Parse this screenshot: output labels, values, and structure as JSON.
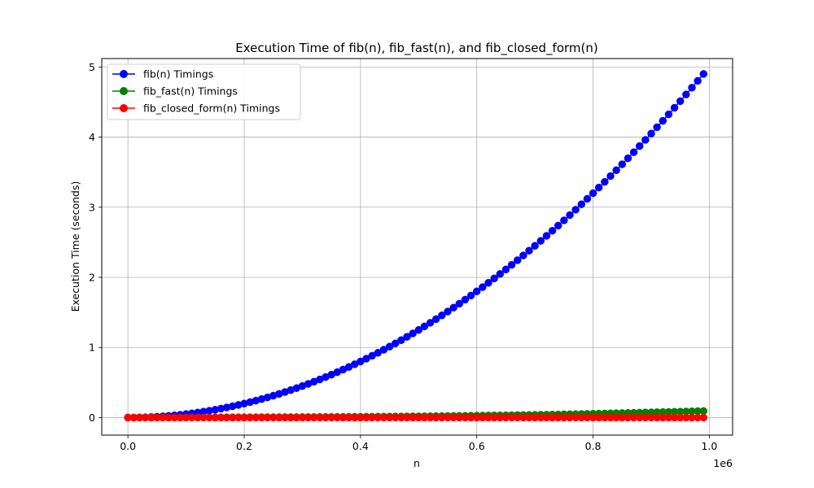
{
  "chart_data": {
    "type": "line",
    "title": "Execution Time of fib(n), fib_fast(n), and fib_closed_form(n)",
    "xlabel": "n",
    "ylabel": "Execution Time (seconds)",
    "x_offset_label": "1e6",
    "xlim": [
      -0.045,
      1.04
    ],
    "ylim": [
      -0.25,
      5.12
    ],
    "x_ticks": [
      0.0,
      0.2,
      0.4,
      0.6,
      0.8,
      1.0
    ],
    "x_tick_labels": [
      "0.0",
      "0.2",
      "0.4",
      "0.6",
      "0.8",
      "1.0"
    ],
    "y_ticks": [
      0,
      1,
      2,
      3,
      4,
      5
    ],
    "y_tick_labels": [
      "0",
      "1",
      "2",
      "3",
      "4",
      "5"
    ],
    "grid": true,
    "legend_position": "top-left",
    "x": [
      0.0,
      0.01,
      0.02,
      0.03,
      0.04,
      0.05,
      0.06,
      0.07,
      0.08,
      0.09,
      0.1,
      0.11,
      0.12,
      0.13,
      0.14,
      0.15,
      0.16,
      0.17,
      0.18,
      0.19,
      0.2,
      0.21,
      0.22,
      0.23,
      0.24,
      0.25,
      0.26,
      0.27,
      0.28,
      0.29,
      0.3,
      0.31,
      0.32,
      0.33,
      0.34,
      0.35,
      0.36,
      0.37,
      0.38,
      0.39,
      0.4,
      0.41,
      0.42,
      0.43,
      0.44,
      0.45,
      0.46,
      0.47,
      0.48,
      0.49,
      0.5,
      0.51,
      0.52,
      0.53,
      0.54,
      0.55,
      0.56,
      0.57,
      0.58,
      0.59,
      0.6,
      0.61,
      0.62,
      0.63,
      0.64,
      0.65,
      0.66,
      0.67,
      0.68,
      0.69,
      0.7,
      0.71,
      0.72,
      0.73,
      0.74,
      0.75,
      0.76,
      0.77,
      0.78,
      0.79,
      0.8,
      0.81,
      0.82,
      0.83,
      0.84,
      0.85,
      0.86,
      0.87,
      0.88,
      0.89,
      0.9,
      0.91,
      0.92,
      0.93,
      0.94,
      0.95,
      0.96,
      0.97,
      0.98,
      0.99
    ],
    "series": [
      {
        "name": "fib(n) Timings",
        "color": "#0000ff",
        "values": [
          0.0,
          0.0005,
          0.002,
          0.0045,
          0.008,
          0.0125,
          0.018,
          0.0245,
          0.032,
          0.0405,
          0.05,
          0.0605,
          0.072,
          0.0845,
          0.098,
          0.1125,
          0.128,
          0.1445,
          0.162,
          0.1805,
          0.2,
          0.2205,
          0.242,
          0.2645,
          0.288,
          0.3125,
          0.338,
          0.3645,
          0.392,
          0.4205,
          0.45,
          0.4805,
          0.512,
          0.5445,
          0.578,
          0.6125,
          0.648,
          0.6845,
          0.722,
          0.7605,
          0.8,
          0.8405,
          0.882,
          0.9245,
          0.968,
          1.0125,
          1.058,
          1.1045,
          1.152,
          1.2005,
          1.25,
          1.3005,
          1.352,
          1.4045,
          1.458,
          1.5125,
          1.568,
          1.6245,
          1.682,
          1.7405,
          1.8,
          1.8605,
          1.922,
          1.9845,
          2.048,
          2.1125,
          2.178,
          2.2445,
          2.312,
          2.3805,
          2.45,
          2.5205,
          2.592,
          2.6645,
          2.738,
          2.8125,
          2.888,
          2.9645,
          3.042,
          3.1205,
          3.2,
          3.2805,
          3.362,
          3.4445,
          3.528,
          3.6125,
          3.698,
          3.7845,
          3.872,
          3.9605,
          4.05,
          4.1405,
          4.232,
          4.3245,
          4.418,
          4.5125,
          4.608,
          4.7045,
          4.802,
          4.9005
        ]
      },
      {
        "name": "fib_fast(n) Timings",
        "color": "#008000",
        "values": [
          0.0,
          0.0,
          0.0,
          0.001,
          0.001,
          0.001,
          0.001,
          0.002,
          0.002,
          0.002,
          0.002,
          0.003,
          0.003,
          0.003,
          0.003,
          0.004,
          0.004,
          0.004,
          0.004,
          0.005,
          0.005,
          0.005,
          0.005,
          0.006,
          0.006,
          0.006,
          0.006,
          0.007,
          0.007,
          0.007,
          0.008,
          0.008,
          0.008,
          0.009,
          0.009,
          0.01,
          0.01,
          0.011,
          0.011,
          0.012,
          0.012,
          0.013,
          0.013,
          0.014,
          0.014,
          0.015,
          0.016,
          0.016,
          0.017,
          0.018,
          0.018,
          0.019,
          0.02,
          0.021,
          0.022,
          0.023,
          0.024,
          0.025,
          0.026,
          0.027,
          0.028,
          0.029,
          0.03,
          0.031,
          0.032,
          0.033,
          0.034,
          0.036,
          0.037,
          0.038,
          0.04,
          0.041,
          0.042,
          0.044,
          0.045,
          0.047,
          0.048,
          0.05,
          0.052,
          0.053,
          0.055,
          0.057,
          0.059,
          0.061,
          0.063,
          0.065,
          0.067,
          0.069,
          0.071,
          0.073,
          0.075,
          0.077,
          0.079,
          0.081,
          0.083,
          0.085,
          0.087,
          0.09,
          0.092,
          0.094
        ]
      },
      {
        "name": "fib_closed_form(n) Timings",
        "color": "#ff0000",
        "values": [
          0.0,
          0.0,
          0.0,
          0.0,
          0.0,
          0.0,
          0.0,
          0.0,
          0.0,
          0.0,
          0.0,
          0.0,
          0.0,
          0.0,
          0.0,
          0.0,
          0.0,
          0.0,
          0.0,
          0.0,
          0.0,
          0.0,
          0.0,
          0.0,
          0.0,
          0.0,
          0.0,
          0.0,
          0.0,
          0.0,
          0.0,
          0.0,
          0.0,
          0.0,
          0.0,
          0.0,
          0.0,
          0.0,
          0.0,
          0.0,
          0.0,
          0.0,
          0.0,
          0.0,
          0.0,
          0.0,
          0.0,
          0.0,
          0.0,
          0.0,
          0.0,
          0.0,
          0.0,
          0.0,
          0.0,
          0.0,
          0.0,
          0.0,
          0.0,
          0.0,
          0.0,
          0.0,
          0.0,
          0.0,
          0.0,
          0.0,
          0.0,
          0.0,
          0.0,
          0.0,
          0.0,
          0.0,
          0.0,
          0.0,
          0.0,
          0.0,
          0.0,
          0.0,
          0.0,
          0.0,
          0.0,
          0.0,
          0.0,
          0.0,
          0.0,
          0.0,
          0.0,
          0.0,
          0.0,
          0.0,
          0.0,
          0.0,
          0.0,
          0.0,
          0.0,
          0.0,
          0.0,
          0.0,
          0.0,
          0.0
        ]
      }
    ]
  }
}
